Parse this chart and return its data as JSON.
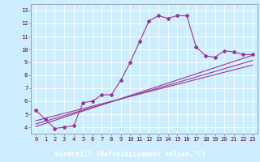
{
  "xlabel": "Windchill (Refroidissement éolien,°C)",
  "background_color": "#cceeff",
  "plot_bg_color": "#cceeff",
  "grid_color": "#ffffff",
  "line_color": "#993399",
  "marker": "D",
  "markersize": 2.0,
  "linewidth": 0.8,
  "ylim": [
    3.5,
    13.5
  ],
  "xlim": [
    -0.5,
    23.5
  ],
  "yticks": [
    4,
    5,
    6,
    7,
    8,
    9,
    10,
    11,
    12,
    13
  ],
  "xticks": [
    0,
    1,
    2,
    3,
    4,
    5,
    6,
    7,
    8,
    9,
    10,
    11,
    12,
    13,
    14,
    15,
    16,
    17,
    18,
    19,
    20,
    21,
    22,
    23
  ],
  "series1_x": [
    0,
    1,
    2,
    3,
    4,
    5,
    6,
    7,
    8,
    9,
    10,
    11,
    12,
    13,
    14,
    15,
    16,
    17,
    18,
    19,
    20,
    21,
    22,
    23
  ],
  "series1_y": [
    5.3,
    4.6,
    3.9,
    4.0,
    4.1,
    5.9,
    6.0,
    6.5,
    6.5,
    7.6,
    9.0,
    10.6,
    12.2,
    12.6,
    12.4,
    12.6,
    12.6,
    10.2,
    9.5,
    9.4,
    9.9,
    9.8,
    9.6,
    9.6
  ],
  "series2_x": [
    0,
    23
  ],
  "series2_y": [
    4.05,
    9.55
  ],
  "series3_x": [
    0,
    23
  ],
  "series3_y": [
    4.25,
    9.15
  ],
  "series4_x": [
    0,
    23
  ],
  "series4_y": [
    4.5,
    8.8
  ],
  "tick_fontsize": 5.0,
  "xlabel_fontsize": 6.0,
  "xlabel_bg": "#7733aa",
  "xlabel_color": "#ffffff"
}
